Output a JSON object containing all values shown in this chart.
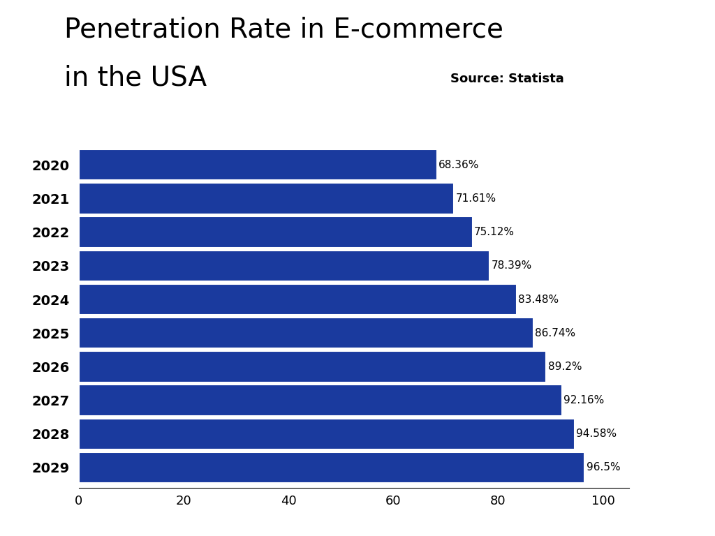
{
  "title_line1": "Penetration Rate in E-commerce",
  "title_line2": "in the USA",
  "source_text": "Source: Statista",
  "years": [
    2020,
    2021,
    2022,
    2023,
    2024,
    2025,
    2026,
    2027,
    2028,
    2029
  ],
  "values": [
    68.36,
    71.61,
    75.12,
    78.39,
    83.48,
    86.74,
    89.2,
    92.16,
    94.58,
    96.5
  ],
  "labels": [
    "68.36%",
    "71.61%",
    "75.12%",
    "78.39%",
    "83.48%",
    "86.74%",
    "89.2%",
    "92.16%",
    "94.58%",
    "96.5%"
  ],
  "bar_color": "#1a3a9e",
  "background_color": "#ffffff",
  "xlim": [
    0,
    105
  ],
  "xticks": [
    0,
    20,
    40,
    60,
    80,
    100
  ],
  "title_fontsize": 28,
  "source_fontsize": 13,
  "bar_label_fontsize": 11,
  "ytick_fontsize": 14,
  "xtick_fontsize": 13,
  "bar_height": 0.92
}
